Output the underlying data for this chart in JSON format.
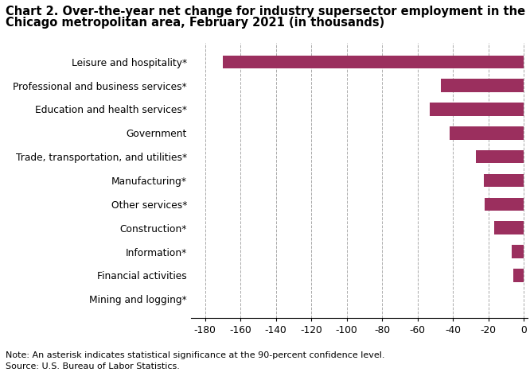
{
  "title_line1": "Chart 2. Over-the-year net change for industry supersector employment in the",
  "title_line2": "Chicago metropolitan area, February 2021 (in thousands)",
  "categories": [
    "Mining and logging*",
    "Financial activities",
    "Information*",
    "Construction*",
    "Other services*",
    "Manufacturing*",
    "Trade, transportation, and utilities*",
    "Government",
    "Education and health services*",
    "Professional and business services*",
    "Leisure and hospitality*"
  ],
  "values": [
    -0.3,
    -6.0,
    -7.0,
    -16.5,
    -22.0,
    -22.5,
    -27.0,
    -42.0,
    -53.0,
    -47.0,
    -170.0
  ],
  "bar_color": "#9b2f5e",
  "xlim": [
    -188,
    2
  ],
  "xticks": [
    -180,
    -160,
    -140,
    -120,
    -100,
    -80,
    -60,
    -40,
    -20,
    0
  ],
  "note": "Note: An asterisk indicates statistical significance at the 90-percent confidence level.",
  "source": "Source: U.S. Bureau of Labor Statistics.",
  "title_fontsize": 10.5,
  "tick_fontsize": 8.8,
  "note_fontsize": 8.0
}
